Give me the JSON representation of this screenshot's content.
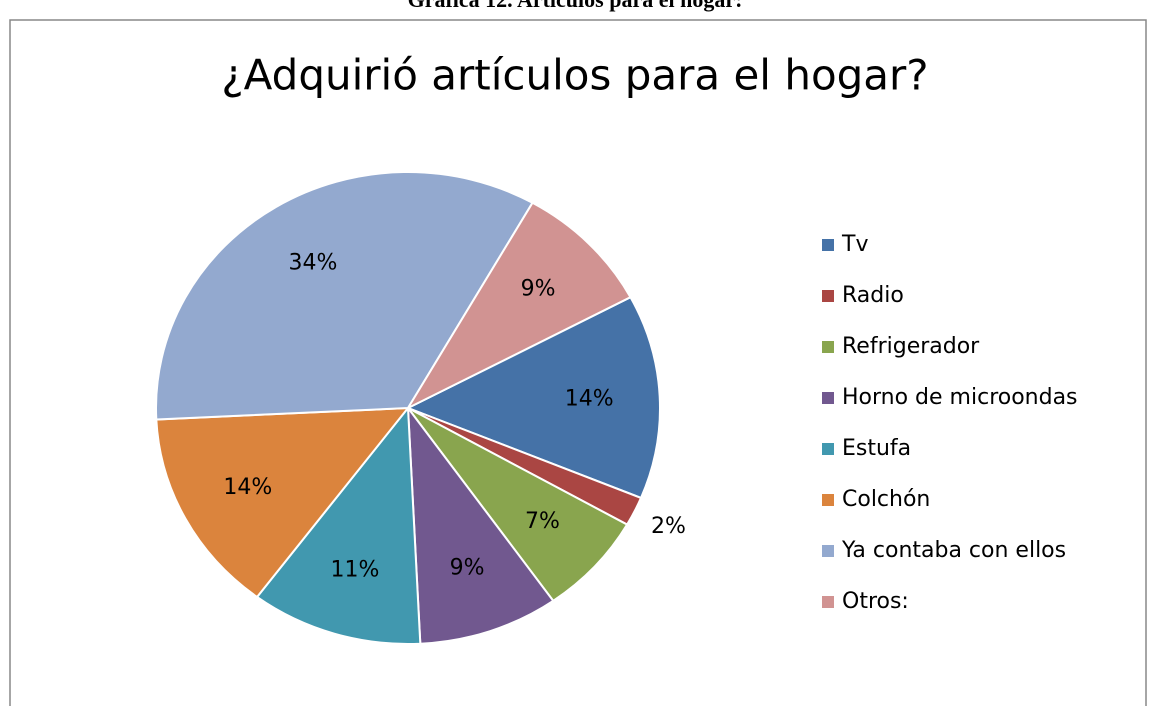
{
  "caption": "Gráfica 12. Artículos para el hogar:",
  "chart_data": {
    "type": "pie",
    "title": "¿Adquirió artículos para el hogar?",
    "categories": [
      "Tv",
      "Radio",
      "Refrigerador",
      "Horno de microondas",
      "Estufa",
      "Colchón",
      "Ya contaba con ellos",
      "Otros:"
    ],
    "values": [
      14,
      2,
      7,
      9,
      11,
      14,
      34,
      9
    ],
    "value_labels": [
      "14%",
      "2%",
      "7%",
      "9%",
      "11%",
      "14%",
      "34%",
      "9%"
    ],
    "colors": [
      "#4572a7",
      "#aa4643",
      "#89a54e",
      "#71588f",
      "#4198af",
      "#db843d",
      "#93a9cf",
      "#d19392"
    ],
    "legend": "right"
  }
}
